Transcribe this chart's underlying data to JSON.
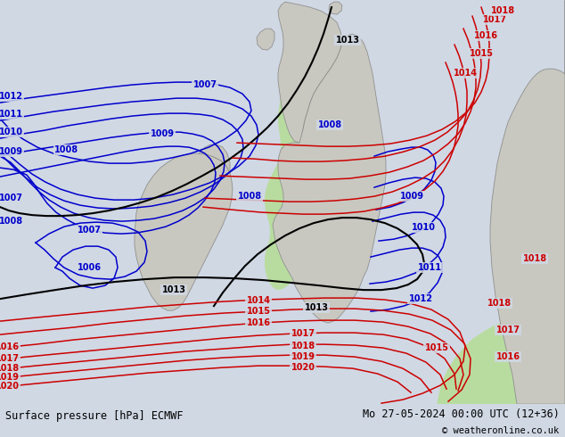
{
  "title_left": "Surface pressure [hPa] ECMWF",
  "title_right": "Mo 27-05-2024 00:00 UTC (12+36)",
  "copyright": "© weatheronline.co.uk",
  "bg_color": "#d0d8e4",
  "land_color": "#c8c8c0",
  "green_color": "#b8dca0",
  "blue_color": "#0000cc",
  "black_color": "#000000",
  "red_color": "#cc0000",
  "bar_color": "#c0c0b8",
  "figsize": [
    6.34,
    4.9
  ],
  "dpi": 100
}
